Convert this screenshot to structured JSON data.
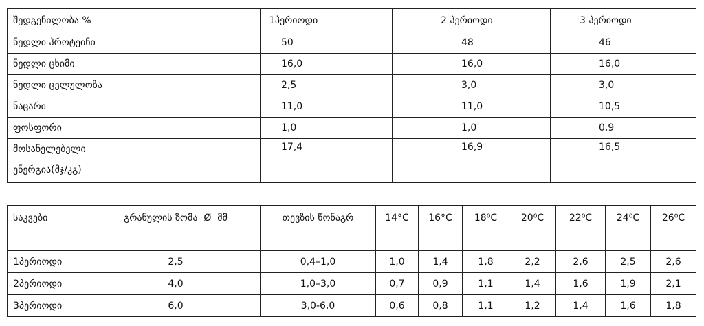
{
  "table1": {
    "header": [
      "შედგენილობა %",
      "1პერიოდი",
      "2 პერიოდი",
      "3 პერიოდი"
    ],
    "rows": [
      [
        "ნედლი პროტეინი",
        "50",
        "48",
        "46"
      ],
      [
        "ნედლი ცხიმი",
        "16,0",
        "16,0",
        "16,0"
      ],
      [
        "ნედლი ცელულოზა",
        "2,5",
        "3,0",
        "3,0"
      ],
      [
        "ნაცარი",
        "11,0",
        "11,0",
        "10,5"
      ],
      [
        "ფოსფორი",
        "1,0",
        "1,0",
        "0,9"
      ],
      [
        [
          "მოსანელებელი",
          "ენერგია(მჯ/კგ)"
        ],
        "17,4",
        "16,9",
        "16,5"
      ]
    ]
  },
  "table2": {
    "header": [
      "საკვები",
      "გრანულის ზომა  Ø  მმ",
      "თევზის წონაგრ",
      "14°C",
      "16°C",
      "18⁰C",
      "20⁰C",
      "22⁰C",
      "24⁰C",
      "26⁰C"
    ],
    "rows": [
      [
        "1პერიოდი",
        "2,5",
        "0,4–1,0",
        "1,0",
        "1,4",
        "1,8",
        "2,2",
        "2,6",
        "2,5",
        "2,6"
      ],
      [
        "2პერიოდი",
        "4,0",
        "1,0–3,0",
        "0,7",
        "0,9",
        "1,1",
        "1,4",
        "1,6",
        "1,9",
        "2,1"
      ],
      [
        "3პერიოდი",
        "6,0",
        "3,0-6,0",
        "0,6",
        "0,8",
        "1,1",
        "1,2",
        "1,4",
        "1,6",
        "1,8"
      ]
    ]
  }
}
